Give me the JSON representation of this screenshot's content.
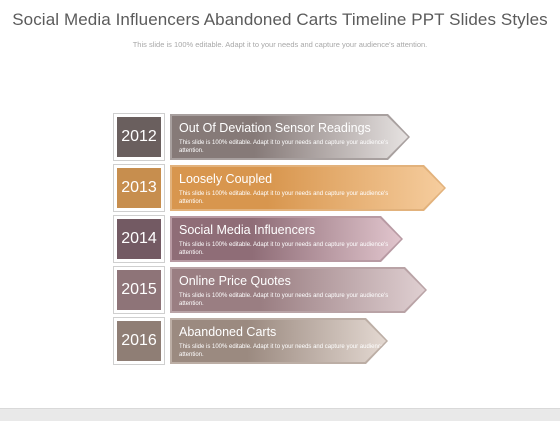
{
  "slide": {
    "title": "Social Media Influencers Abandoned Carts Timeline PPT Slides Styles",
    "subtitle": "This slide is 100% editable. Adapt it to your needs and capture your audience's attention."
  },
  "timeline": [
    {
      "year": "2012",
      "heading": "Out Of Deviation Sensor Readings",
      "desc": "This slide is 100% editable. Adapt it to your needs and capture your audience's attention.",
      "year_color": "#6a5f5e",
      "banner_from": "#867a78",
      "banner_to": "#e6e2e1",
      "outline": "#a8a09f"
    },
    {
      "year": "2013",
      "heading": "Loosely Coupled",
      "desc": "This slide is 100% editable. Adapt it to your needs and capture your audience's attention.",
      "year_color": "#c78e4e",
      "banner_from": "#d8964e",
      "banner_to": "#f6cd9e",
      "outline": "#e2b27c"
    },
    {
      "year": "2014",
      "heading": "Social Media Influencers",
      "desc": "This slide is 100% editable. Adapt it to your needs and capture your audience's attention.",
      "year_color": "#735a63",
      "banner_from": "#8f6d77",
      "banner_to": "#e1c5cd",
      "outline": "#b89aa3"
    },
    {
      "year": "2015",
      "heading": "Online Price Quotes",
      "desc": "This slide is 100% editable. Adapt it to your needs and capture your audience's attention.",
      "year_color": "#8e7478",
      "banner_from": "#9a7e82",
      "banner_to": "#dfcfd1",
      "outline": "#b9a3a6"
    },
    {
      "year": "2016",
      "heading": "Abandoned Carts",
      "desc": "This slide is 100% editable. Adapt it to your needs and capture your audience's attention.",
      "year_color": "#8f7e75",
      "banner_from": "#9b8a80",
      "banner_to": "#e3d8d1",
      "outline": "#bcaea5"
    }
  ]
}
